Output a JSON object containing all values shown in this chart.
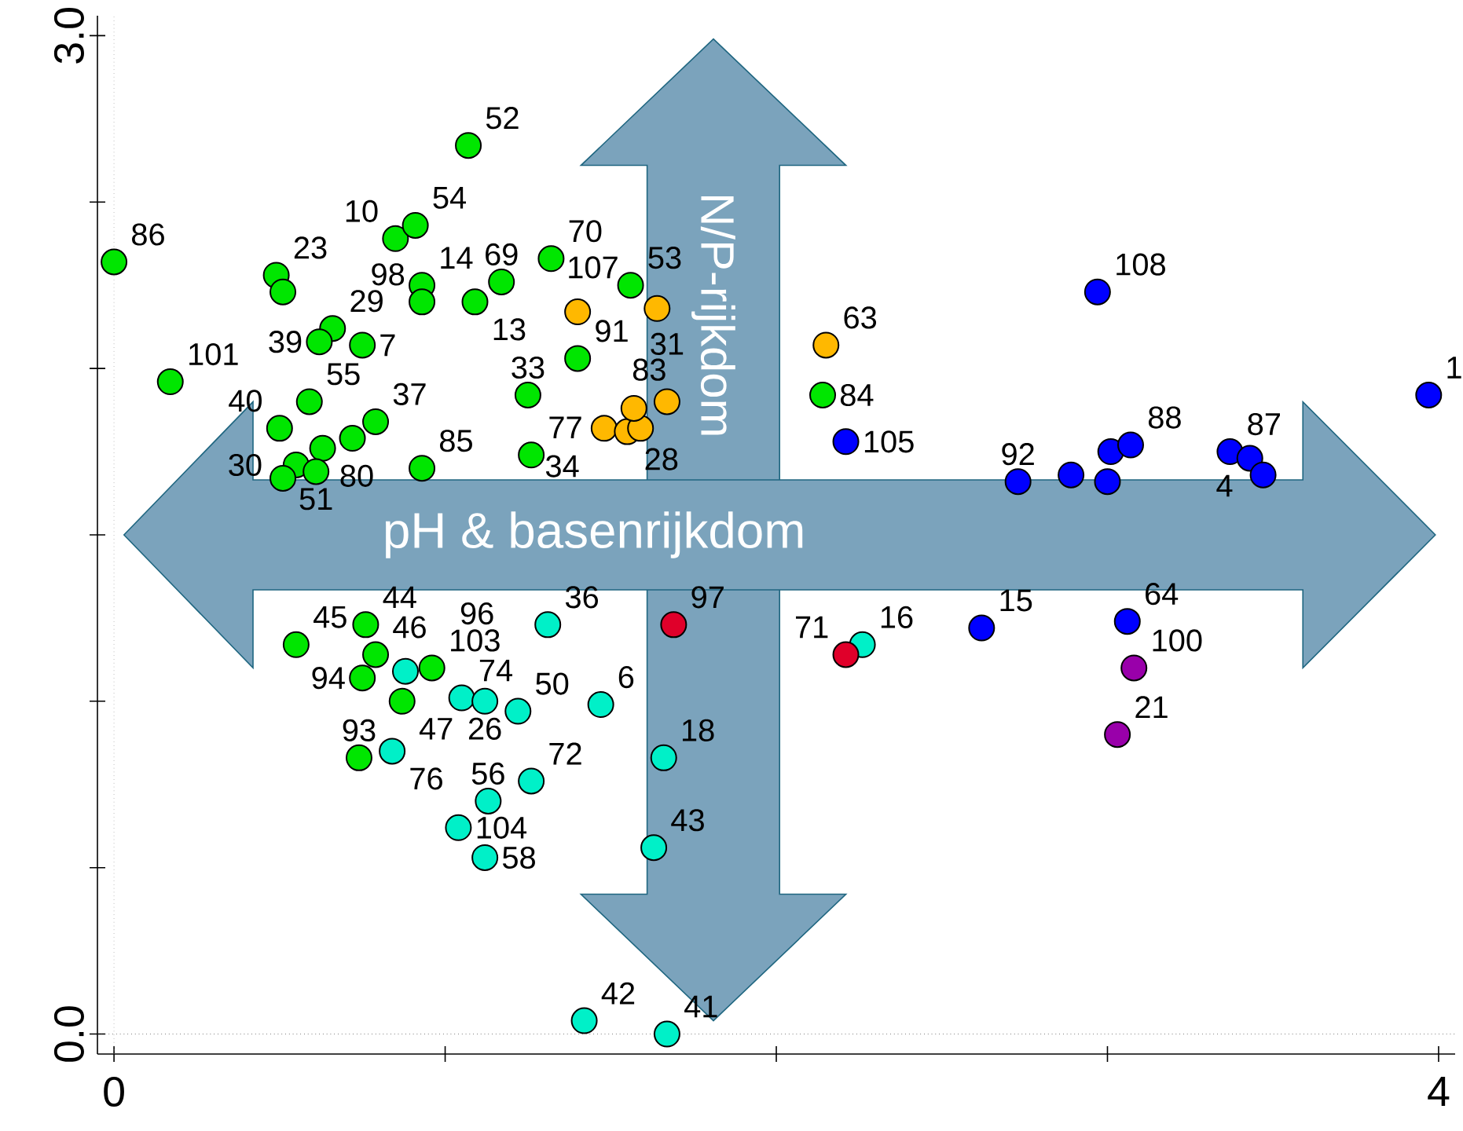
{
  "chart_data": {
    "type": "scatter",
    "marker": "circle",
    "xlim": [
      -0.05,
      4.05
    ],
    "ylim": [
      -0.06,
      3.06
    ],
    "xticks": [
      0,
      {
        "value": 1,
        "label": null
      },
      {
        "value": 2,
        "label": null
      },
      {
        "value": 3,
        "label": null
      },
      4
    ],
    "yticks": [
      {
        "value": 0,
        "label": "0.0"
      },
      {
        "value": 0.5,
        "label": null
      },
      {
        "value": 1,
        "label": null
      },
      {
        "value": 1.5,
        "label": null
      },
      {
        "value": 2,
        "label": null
      },
      {
        "value": 2.5,
        "label": null
      },
      {
        "value": 3,
        "label": "3.0"
      }
    ],
    "ref_lines": [
      {
        "axis": "x",
        "value": 0,
        "line_style": "dotted",
        "color": "#999999"
      },
      {
        "axis": "y",
        "value": 0,
        "line_style": "dotted",
        "color": "#333333"
      }
    ],
    "series": [
      {
        "color": "#00e600",
        "x": [
          0.0,
          0.17,
          1.07,
          0.85,
          0.91,
          0.49,
          0.51,
          0.66,
          0.62,
          0.75,
          0.93,
          0.93,
          1.17,
          1.09,
          1.32,
          1.56,
          1.4,
          1.25,
          0.5,
          0.59,
          0.63,
          0.72,
          0.79,
          0.93,
          1.26,
          0.55,
          0.61,
          0.51,
          0.55,
          0.76,
          0.79,
          0.75,
          0.87,
          0.96,
          0.74,
          2.14
        ],
        "values": [
          2.32,
          1.96,
          2.67,
          2.39,
          2.43,
          2.28,
          2.23,
          2.12,
          2.08,
          2.07,
          2.25,
          2.2,
          2.26,
          2.2,
          2.33,
          2.25,
          2.03,
          1.92,
          1.82,
          1.9,
          1.76,
          1.79,
          1.84,
          1.7,
          1.74,
          1.71,
          1.69,
          1.67,
          1.17,
          1.23,
          1.14,
          1.07,
          1.0,
          1.1,
          0.83,
          1.92
        ]
      },
      {
        "color": "#ffb800",
        "x": [
          1.4,
          1.64,
          1.48,
          1.55,
          1.59,
          1.57,
          1.67,
          2.15
        ],
        "values": [
          2.17,
          2.18,
          1.82,
          1.81,
          1.82,
          1.88,
          1.9,
          2.07
        ]
      },
      {
        "color": "#0000ff",
        "x": [
          2.21,
          2.97,
          3.97,
          2.73,
          2.89,
          3.01,
          3.07,
          3.0,
          3.37,
          3.43,
          3.47,
          2.62,
          3.06
        ],
        "values": [
          1.78,
          2.23,
          1.92,
          1.66,
          1.68,
          1.75,
          1.77,
          1.66,
          1.75,
          1.73,
          1.68,
          1.22,
          1.24
        ]
      },
      {
        "color": "#00f0c8",
        "x": [
          1.31,
          1.47,
          1.66,
          1.63,
          1.42,
          1.67,
          2.26,
          0.88,
          1.05,
          1.12,
          1.22,
          0.84,
          1.13,
          1.04,
          1.12,
          1.26
        ],
        "values": [
          1.23,
          0.99,
          0.83,
          0.56,
          0.04,
          0.0,
          1.17,
          1.09,
          1.01,
          1.0,
          0.97,
          0.85,
          0.7,
          0.62,
          0.53,
          0.76
        ]
      },
      {
        "color": "#e0002a",
        "x": [
          1.69,
          2.21
        ],
        "values": [
          1.23,
          1.14
        ]
      },
      {
        "color": "#9900aa",
        "x": [
          3.08,
          3.03
        ],
        "values": [
          1.1,
          0.9
        ]
      }
    ],
    "annotations": [
      "pH & basenrijkdom",
      "N/P-rijkdom",
      {
        "text": "86",
        "x": 0.0,
        "y": 2.32
      },
      {
        "text": "101",
        "x": 0.17,
        "y": 1.96
      },
      {
        "text": "52",
        "x": 1.07,
        "y": 2.67
      },
      {
        "text": "10",
        "x": 0.85,
        "y": 2.39
      },
      {
        "text": "54",
        "x": 0.91,
        "y": 2.43
      },
      {
        "text": "23",
        "x": 0.49,
        "y": 2.28
      },
      {
        "text": "29",
        "x": 0.66,
        "y": 2.12
      },
      {
        "text": "39",
        "x": 0.62,
        "y": 2.08
      },
      {
        "text": "7",
        "x": 0.75,
        "y": 2.07
      },
      {
        "text": "14",
        "x": 0.93,
        "y": 2.25
      },
      {
        "text": "98",
        "x": 0.93,
        "y": 2.2
      },
      {
        "text": "69",
        "x": 1.17,
        "y": 2.26
      },
      {
        "text": "13",
        "x": 1.09,
        "y": 2.2
      },
      {
        "text": "70",
        "x": 1.32,
        "y": 2.33
      },
      {
        "text": "53",
        "x": 1.56,
        "y": 2.25
      },
      {
        "text": "91",
        "x": 1.4,
        "y": 2.03
      },
      {
        "text": "33",
        "x": 1.25,
        "y": 1.92
      },
      {
        "text": "40",
        "x": 0.5,
        "y": 1.82
      },
      {
        "text": "55",
        "x": 0.59,
        "y": 1.9
      },
      {
        "text": "80",
        "x": 0.63,
        "y": 1.76
      },
      {
        "text": "37",
        "x": 0.79,
        "y": 1.84
      },
      {
        "text": "85",
        "x": 0.93,
        "y": 1.7
      },
      {
        "text": "77",
        "x": 1.26,
        "y": 1.74
      },
      {
        "text": "51",
        "x": 0.61,
        "y": 1.69
      },
      {
        "text": "30",
        "x": 0.55,
        "y": 1.71
      },
      {
        "text": "45",
        "x": 0.55,
        "y": 1.17
      },
      {
        "text": "44",
        "x": 0.76,
        "y": 1.23
      },
      {
        "text": "46",
        "x": 0.79,
        "y": 1.14
      },
      {
        "text": "94",
        "x": 0.75,
        "y": 1.07
      },
      {
        "text": "47",
        "x": 0.87,
        "y": 1.0
      },
      {
        "text": "103",
        "x": 0.96,
        "y": 1.1
      },
      {
        "text": "93",
        "x": 0.74,
        "y": 0.83
      },
      {
        "text": "84",
        "x": 2.14,
        "y": 1.92
      },
      {
        "text": "83",
        "x": 1.4,
        "y": 2.17
      },
      {
        "text": "107",
        "x": 1.64,
        "y": 2.18
      },
      {
        "text": "28",
        "x": 1.55,
        "y": 1.81
      },
      {
        "text": "34",
        "x": 1.57,
        "y": 1.88
      },
      {
        "text": "31",
        "x": 1.67,
        "y": 1.9
      },
      {
        "text": "63",
        "x": 2.15,
        "y": 2.07
      },
      {
        "text": "105",
        "x": 2.21,
        "y": 1.78
      },
      {
        "text": "108",
        "x": 2.97,
        "y": 2.23
      },
      {
        "text": "1",
        "x": 3.97,
        "y": 1.92
      },
      {
        "text": "92",
        "x": 2.73,
        "y": 1.66
      },
      {
        "text": "88",
        "x": 3.07,
        "y": 1.77
      },
      {
        "text": "87",
        "x": 3.37,
        "y": 1.75
      },
      {
        "text": "4",
        "x": 3.43,
        "y": 1.73
      },
      {
        "text": "15",
        "x": 2.62,
        "y": 1.22
      },
      {
        "text": "64",
        "x": 3.06,
        "y": 1.24
      },
      {
        "text": "36",
        "x": 1.31,
        "y": 1.23
      },
      {
        "text": "6",
        "x": 1.47,
        "y": 0.99
      },
      {
        "text": "18",
        "x": 1.66,
        "y": 0.83
      },
      {
        "text": "43",
        "x": 1.63,
        "y": 0.56
      },
      {
        "text": "42",
        "x": 1.42,
        "y": 0.04
      },
      {
        "text": "41",
        "x": 1.67,
        "y": 0.0
      },
      {
        "text": "16",
        "x": 2.26,
        "y": 1.17
      },
      {
        "text": "96",
        "x": 0.88,
        "y": 1.09
      },
      {
        "text": "74",
        "x": 1.05,
        "y": 1.01
      },
      {
        "text": "26",
        "x": 1.12,
        "y": 1.0
      },
      {
        "text": "50",
        "x": 1.22,
        "y": 0.97
      },
      {
        "text": "76",
        "x": 0.84,
        "y": 0.85
      },
      {
        "text": "56",
        "x": 1.13,
        "y": 0.7
      },
      {
        "text": "104",
        "x": 1.04,
        "y": 0.62
      },
      {
        "text": "58",
        "x": 1.12,
        "y": 0.53
      },
      {
        "text": "72",
        "x": 1.26,
        "y": 0.76
      },
      {
        "text": "97",
        "x": 1.69,
        "y": 1.23
      },
      {
        "text": "71",
        "x": 2.21,
        "y": 1.14
      },
      {
        "text": "100",
        "x": 3.08,
        "y": 1.1
      },
      {
        "text": "21",
        "x": 3.03,
        "y": 0.9
      }
    ]
  }
}
